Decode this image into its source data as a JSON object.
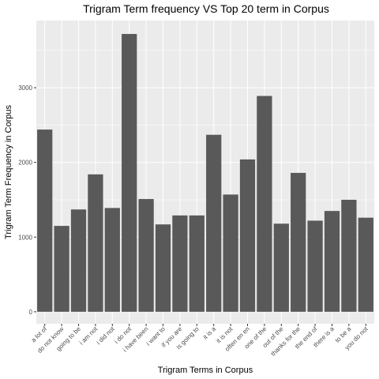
{
  "chart_data": {
    "type": "bar",
    "title": "Trigram Term frequency VS Top 20 term in Corpus",
    "xlabel": "Trigram Terms in Corpus",
    "ylabel": "Trigram Term Frequency in Corpus",
    "categories": [
      "a lot of",
      "do not know",
      "going to be",
      "i am not",
      "i did not",
      "i do not",
      "i have been",
      "i want to",
      "if you are",
      "is going to",
      "it is a",
      "it is not",
      "often en en",
      "one of the",
      "out of the",
      "thanks for the",
      "the end of",
      "there is a",
      "to be a",
      "you do not"
    ],
    "values": [
      2440,
      1150,
      1370,
      1840,
      1390,
      3720,
      1510,
      1170,
      1290,
      1290,
      2370,
      1570,
      2040,
      2890,
      1180,
      1860,
      1220,
      1350,
      1500,
      1260
    ],
    "yticks": [
      0,
      1000,
      2000,
      3000
    ],
    "ylim": [
      -160,
      3900
    ],
    "grid": true,
    "bar_color": "#595959",
    "panel_color": "#ebebeb",
    "grid_color": "#ffffff"
  }
}
